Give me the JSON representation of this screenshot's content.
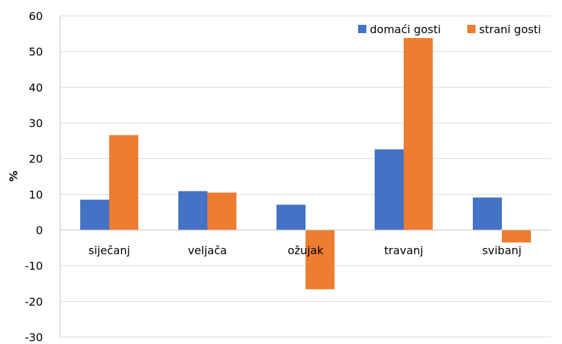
{
  "chart_data": {
    "type": "bar",
    "title": "",
    "xlabel": "",
    "ylabel": "%",
    "ylim": [
      -30,
      60
    ],
    "yticks": [
      -30,
      -20,
      -10,
      0,
      10,
      20,
      30,
      40,
      50,
      60
    ],
    "grid": true,
    "legend_position": "top-right",
    "categories": [
      "siječanj",
      "veljača",
      "ožujak",
      "travanj",
      "svibanj"
    ],
    "series": [
      {
        "name": "domaći gosti",
        "color": "#4472C4",
        "values": [
          8.5,
          10.9,
          7.1,
          22.6,
          9.1
        ]
      },
      {
        "name": "strani gosti",
        "color": "#ED7D31",
        "values": [
          26.6,
          10.5,
          -16.6,
          53.8,
          -3.5
        ]
      }
    ]
  }
}
